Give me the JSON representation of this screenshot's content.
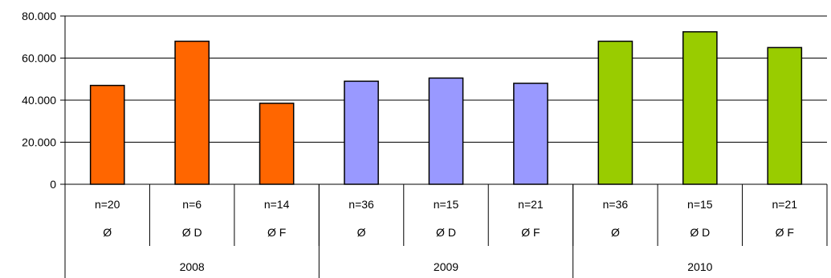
{
  "chart_data": {
    "type": "bar",
    "title": "",
    "xlabel": "",
    "ylabel": "",
    "ylim": [
      0,
      80000
    ],
    "yticks": [
      "0",
      "20.000",
      "40.000",
      "60.000",
      "80.000"
    ],
    "grid": true,
    "categories": [
      {
        "n": "n=20",
        "label": "Ø",
        "group": "2008"
      },
      {
        "n": "n=6",
        "label": "Ø D",
        "group": "2008"
      },
      {
        "n": "n=14",
        "label": "Ø F",
        "group": "2008"
      },
      {
        "n": "n=36",
        "label": "Ø",
        "group": "2009"
      },
      {
        "n": "n=15",
        "label": "Ø D",
        "group": "2009"
      },
      {
        "n": "n=21",
        "label": "Ø F",
        "group": "2009"
      },
      {
        "n": "n=36",
        "label": "Ø",
        "group": "2010"
      },
      {
        "n": "n=15",
        "label": "Ø D",
        "group": "2010"
      },
      {
        "n": "n=21",
        "label": "Ø F",
        "group": "2010"
      }
    ],
    "values": [
      47000,
      68000,
      38500,
      49000,
      50500,
      48000,
      68000,
      72500,
      65000
    ],
    "groups": [
      {
        "label": "2008",
        "color": "#ff6600"
      },
      {
        "label": "2009",
        "color": "#9999ff"
      },
      {
        "label": "2010",
        "color": "#99cc00"
      }
    ]
  }
}
